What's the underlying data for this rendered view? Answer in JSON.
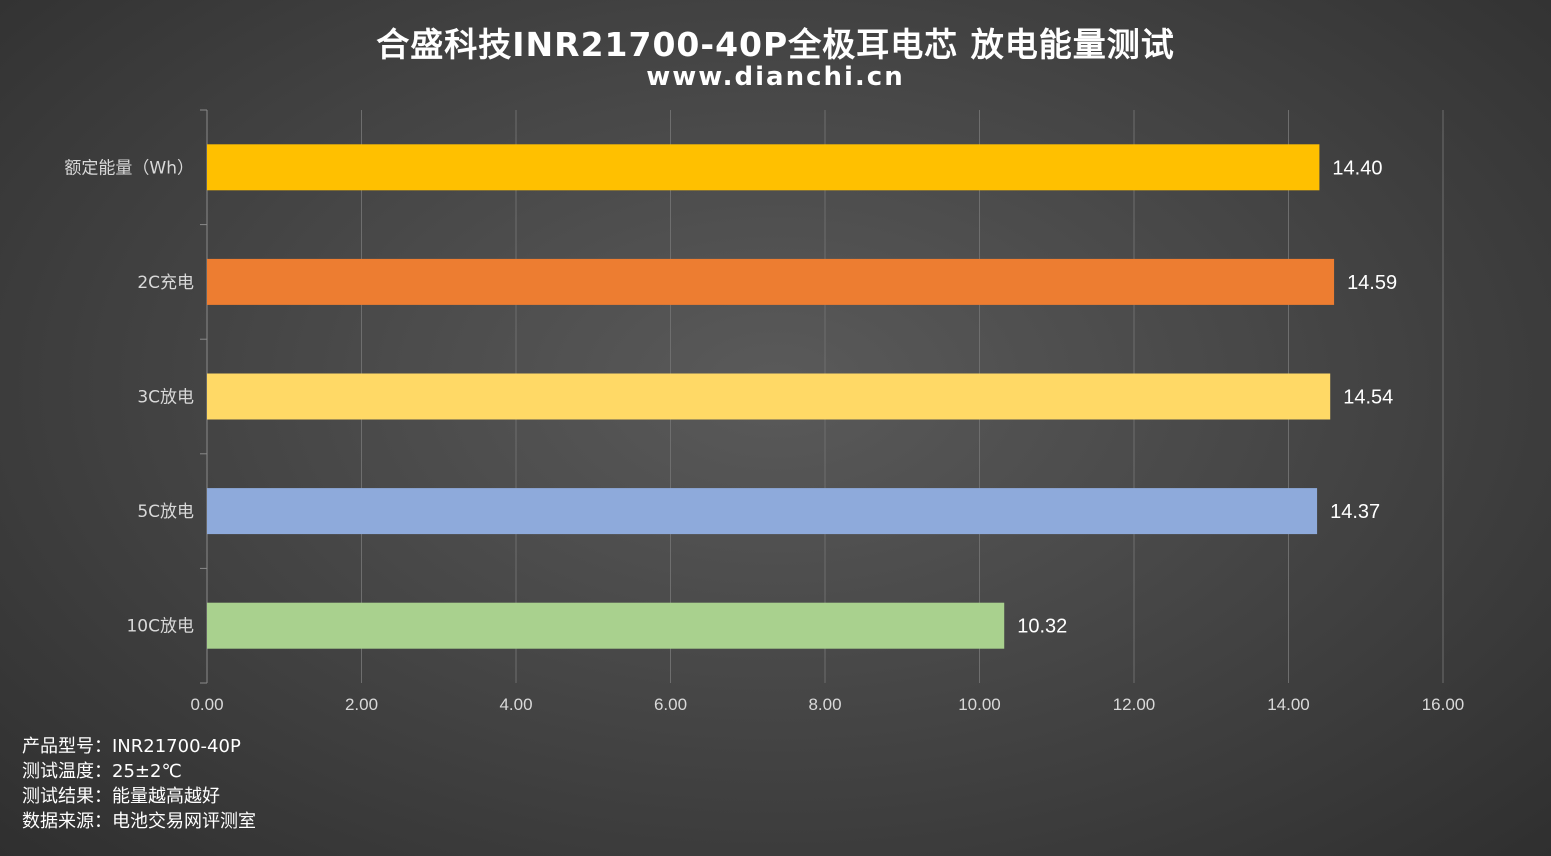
{
  "header": {
    "title": "合盛科技INR21700-40P全极耳电芯 放电能量测试",
    "subtitle": "www.dianchi.cn"
  },
  "colors": {
    "grid": "#6e6e6e",
    "axis_text": "#d9d9d9",
    "label_text": "#ffffff"
  },
  "chart_data": {
    "type": "bar",
    "orientation": "horizontal",
    "title": "合盛科技INR21700-40P全极耳电芯 放电能量测试",
    "categories": [
      "额定能量（Wh）",
      "2C充电",
      "3C放电",
      "5C放电",
      "10C放电"
    ],
    "values": [
      14.4,
      14.59,
      14.54,
      14.37,
      10.32
    ],
    "value_labels": [
      "14.40",
      "14.59",
      "14.54",
      "14.37",
      "10.32"
    ],
    "bar_colors": [
      "#FFC000",
      "#ED7D31",
      "#FFD966",
      "#8EAADB",
      "#A9D18E"
    ],
    "xlim": [
      0,
      16
    ],
    "xticks": [
      "0.00",
      "2.00",
      "4.00",
      "6.00",
      "8.00",
      "10.00",
      "12.00",
      "14.00",
      "16.00"
    ],
    "xtick_values": [
      0,
      2,
      4,
      6,
      8,
      10,
      12,
      14,
      16
    ],
    "grid": true,
    "legend": "none",
    "xlabel": "",
    "ylabel": ""
  },
  "notes": [
    "产品型号：INR21700-40P",
    "测试温度：25±2℃",
    "测试结果：能量越高越好",
    "数据来源：电池交易网评测室"
  ]
}
